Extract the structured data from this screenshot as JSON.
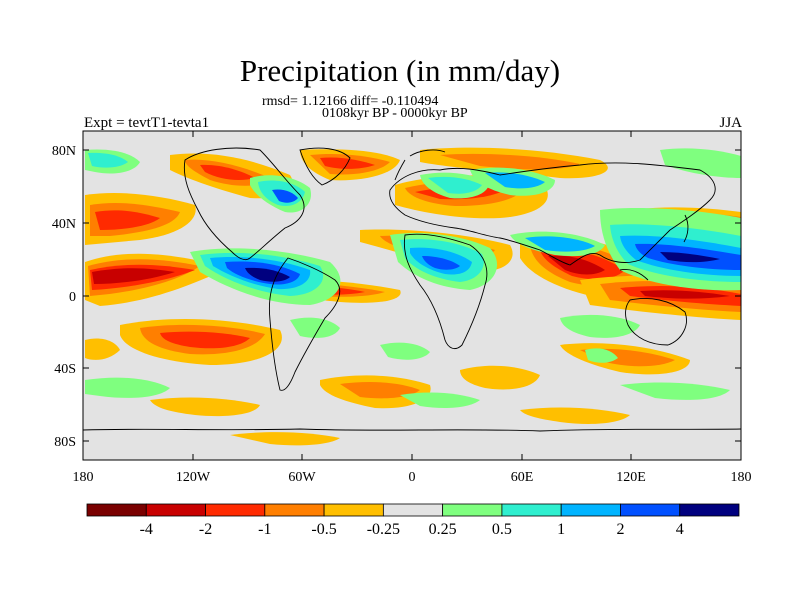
{
  "title": "Precipitation (in mm/day)",
  "stats_line": "rmsd= 1.12166 diff= -0.110494",
  "period_line": "0108kyr BP - 0000kyr BP",
  "experiment_label": "Expt = tevtT1-tevta1",
  "season_label": "JJA",
  "map": {
    "lon_ticks": [
      "180",
      "120W",
      "60W",
      "0",
      "60E",
      "120E",
      "180"
    ],
    "lat_ticks": [
      "80N",
      "40N",
      "0",
      "40S",
      "80S"
    ],
    "background_color": "#e3e3e3"
  },
  "colorbar": {
    "labels": [
      "-4",
      "-2",
      "-1",
      "-0.5",
      "-0.25",
      "0.25",
      "0.5",
      "1",
      "2",
      "4"
    ],
    "colors": [
      "#7a0000",
      "#c80000",
      "#ff2a00",
      "#ff7f00",
      "#ffbf00",
      "#e3e3e3",
      "#7fff7f",
      "#2fefcf",
      "#00b4ff",
      "#0050ff",
      "#00007f"
    ]
  }
}
